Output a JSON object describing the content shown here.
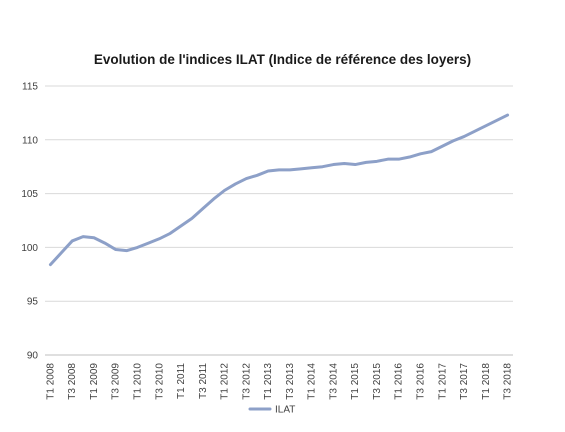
{
  "chart_data": {
    "type": "line",
    "title": "Evolution de l'indices ILAT (Indice de référence des loyers)",
    "xlabel": "",
    "ylabel": "",
    "ylim": [
      90,
      115
    ],
    "yticks": [
      90,
      95,
      100,
      105,
      110,
      115
    ],
    "grid": true,
    "legend_position": "bottom",
    "x": [
      "T1 2008",
      "T2 2008",
      "T3 2008",
      "T4 2008",
      "T1 2009",
      "T2 2009",
      "T3 2009",
      "T4 2009",
      "T1 2010",
      "T2 2010",
      "T3 2010",
      "T4 2010",
      "T1 2011",
      "T2 2011",
      "T3 2011",
      "T4 2011",
      "T1 2012",
      "T2 2012",
      "T3 2012",
      "T4 2012",
      "T1 2013",
      "T2 2013",
      "T3 2013",
      "T4 2013",
      "T1 2014",
      "T2 2014",
      "T3 2014",
      "T4 2014",
      "T1 2015",
      "T2 2015",
      "T3 2015",
      "T4 2015",
      "T1 2016",
      "T2 2016",
      "T3 2016",
      "T4 2016",
      "T1 2017",
      "T2 2017",
      "T3 2017",
      "T4 2017",
      "T1 2018",
      "T2 2018",
      "T3 2018"
    ],
    "xtick_labels": [
      "T1 2008",
      "T3 2008",
      "T1 2009",
      "T3 2009",
      "T1 2010",
      "T3 2010",
      "T1 2011",
      "T3 2011",
      "T1 2012",
      "T3 2012",
      "T1 2013",
      "T3 2013",
      "T1 2014",
      "T3 2014",
      "T1 2015",
      "T3 2015",
      "T1 2016",
      "T3 2016",
      "T1 2017",
      "T3 2017",
      "T1 2018",
      "T3 2018"
    ],
    "series": [
      {
        "name": "ILAT",
        "color": "#8da0c8",
        "values": [
          98.4,
          99.5,
          100.6,
          101.0,
          100.9,
          100.4,
          99.8,
          99.7,
          100.0,
          100.4,
          100.8,
          101.3,
          102.0,
          102.7,
          103.6,
          104.5,
          105.3,
          105.9,
          106.4,
          106.7,
          107.1,
          107.2,
          107.2,
          107.3,
          107.4,
          107.5,
          107.7,
          107.8,
          107.7,
          107.9,
          108.0,
          108.2,
          108.2,
          108.4,
          108.7,
          108.9,
          109.4,
          109.9,
          110.3,
          110.8,
          111.3,
          111.8,
          112.3
        ]
      }
    ]
  }
}
